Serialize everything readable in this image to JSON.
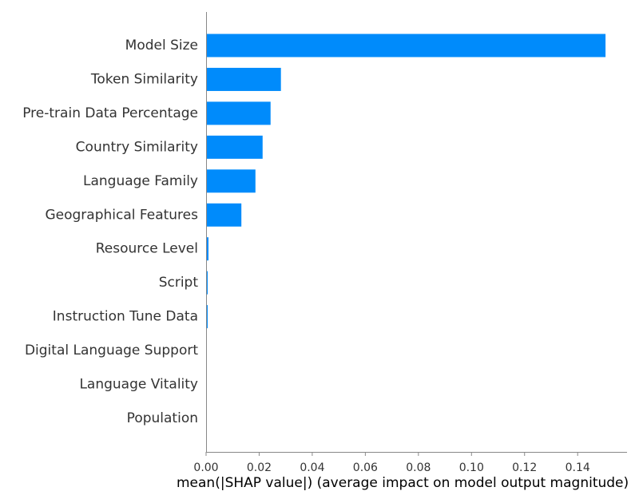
{
  "chart_data": {
    "type": "bar",
    "orientation": "horizontal",
    "title": "",
    "xlabel": "mean(|SHAP value|) (average impact on model output magnitude)",
    "ylabel": "",
    "categories": [
      "Model Size",
      "Token Similarity",
      "Pre-train Data Percentage",
      "Country Similarity",
      "Language Family",
      "Geographical Features",
      "Resource Level",
      "Script",
      "Instruction Tune Data",
      "Digital Language Support",
      "Language Vitality",
      "Population"
    ],
    "values": [
      0.1505,
      0.0282,
      0.0243,
      0.0213,
      0.0186,
      0.0133,
      0.0009,
      0.0006,
      0.0006,
      0.0,
      0.0,
      0.0
    ],
    "xticks": [
      "0.00",
      "0.02",
      "0.04",
      "0.06",
      "0.08",
      "0.10",
      "0.12",
      "0.14"
    ],
    "xlim": [
      0,
      0.1586
    ],
    "grid": false,
    "legend": "none",
    "bar_color": "#008bfb",
    "axis_color": "#888888",
    "text_color": "#333333"
  }
}
